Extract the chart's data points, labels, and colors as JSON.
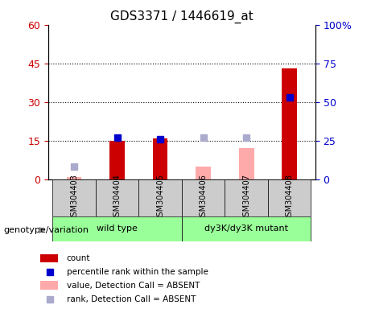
{
  "title": "GDS3371 / 1446619_at",
  "samples": [
    "GSM304403",
    "GSM304404",
    "GSM304405",
    "GSM304406",
    "GSM304407",
    "GSM304408"
  ],
  "count_values": [
    null,
    15,
    16,
    null,
    null,
    43
  ],
  "count_absent": [
    1,
    null,
    null,
    5,
    12,
    null
  ],
  "rank_values": [
    null,
    27,
    26,
    null,
    null,
    53
  ],
  "rank_absent": [
    8,
    null,
    null,
    27,
    27,
    null
  ],
  "ylim_left": [
    0,
    60
  ],
  "ylim_right": [
    0,
    100
  ],
  "yticks_left": [
    0,
    15,
    30,
    45,
    60
  ],
  "yticks_right": [
    0,
    25,
    50,
    75,
    100
  ],
  "ytick_labels_left": [
    "0",
    "15",
    "30",
    "45",
    "60"
  ],
  "ytick_labels_right": [
    "0",
    "25",
    "50",
    "75",
    "100%"
  ],
  "hlines": [
    15,
    30,
    45
  ],
  "left_axis_color": "#cc0000",
  "right_axis_color": "#0000cc",
  "group_label": "genotype/variation",
  "bar_width": 0.35,
  "color_red": "#cc0000",
  "color_pink": "#ffaaaa",
  "color_blue": "#0000cc",
  "color_lightblue": "#aaaacc",
  "color_green": "#99ff99",
  "color_grey": "#cccccc"
}
